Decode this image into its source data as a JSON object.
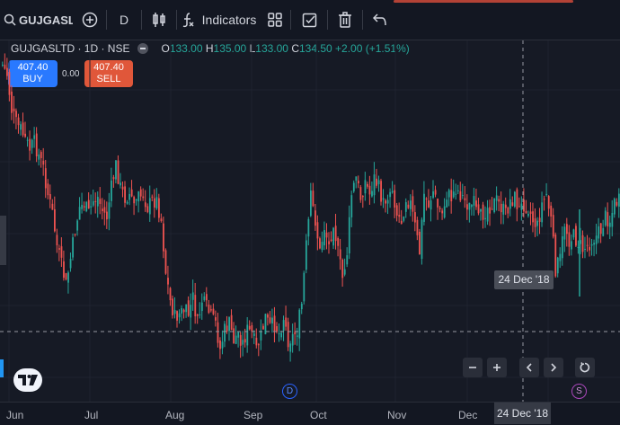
{
  "toolbar": {
    "symbol": "GUJGASLTD",
    "interval": "D",
    "indicators_label": "Indicators",
    "icons": [
      "search-icon",
      "add-symbol-icon",
      "candles-icon",
      "indicators-icon",
      "layouts-icon",
      "checkbox-icon",
      "trash-icon",
      "undo-icon"
    ]
  },
  "legend": {
    "symbol": "GUJGASLTD · 1D · NSE",
    "open_label": "O",
    "open": "133.00",
    "high_label": "H",
    "high": "135.00",
    "low_label": "L",
    "low": "133.00",
    "close_label": "C",
    "close": "134.50",
    "change": "+2.00 (+1.51%)"
  },
  "trade": {
    "buy_price": "407.40",
    "buy_label": "BUY",
    "sell_price": "407.40",
    "sell_label": "SELL",
    "spread": "0.00"
  },
  "crosshair": {
    "date": "24 Dec '18"
  },
  "time_axis": {
    "labels": [
      "Jun",
      "Jul",
      "Aug",
      "Sep",
      "Oct",
      "Nov",
      "Dec"
    ]
  },
  "markers": {
    "dividend": "D",
    "split": "S"
  },
  "colors": {
    "up": "#26a69a",
    "down": "#ef5350",
    "bg": "#161a25",
    "buy": "#2979ff",
    "sell": "#e0573a"
  },
  "chart_data": {
    "type": "candlestick",
    "series": [
      {
        "close_path": [
          [
            0,
            92
          ],
          [
            2,
            95
          ],
          [
            4,
            106
          ],
          [
            6,
            110
          ],
          [
            8,
            112
          ],
          [
            10,
            115
          ],
          [
            12,
            118
          ],
          [
            14,
            116
          ],
          [
            16,
            120
          ],
          [
            18,
            124
          ],
          [
            20,
            132
          ],
          [
            22,
            138
          ],
          [
            24,
            148
          ],
          [
            26,
            154
          ],
          [
            28,
            160
          ],
          [
            30,
            152
          ],
          [
            32,
            143
          ],
          [
            34,
            136
          ],
          [
            36,
            135
          ],
          [
            38,
            138
          ],
          [
            40,
            134
          ],
          [
            42,
            133
          ],
          [
            44,
            137
          ],
          [
            46,
            139
          ],
          [
            48,
            130
          ],
          [
            50,
            123
          ],
          [
            52,
            130
          ],
          [
            54,
            133
          ],
          [
            56,
            132
          ],
          [
            58,
            135
          ],
          [
            60,
            133
          ],
          [
            62,
            132
          ],
          [
            64,
            136
          ],
          [
            66,
            134
          ],
          [
            68,
            134
          ],
          [
            70,
            140
          ],
          [
            72,
            156
          ],
          [
            74,
            165
          ],
          [
            76,
            170
          ],
          [
            78,
            169
          ],
          [
            80,
            168
          ],
          [
            82,
            169
          ],
          [
            84,
            164
          ],
          [
            86,
            172
          ],
          [
            88,
            165
          ],
          [
            90,
            167
          ],
          [
            92,
            170
          ],
          [
            94,
            172
          ],
          [
            96,
            180
          ],
          [
            98,
            174
          ],
          [
            100,
            172
          ],
          [
            102,
            177
          ],
          [
            104,
            175
          ],
          [
            106,
            178
          ],
          [
            108,
            174
          ],
          [
            110,
            175
          ],
          [
            112,
            180
          ],
          [
            114,
            176
          ],
          [
            116,
            170
          ],
          [
            118,
            173
          ],
          [
            120,
            172
          ],
          [
            122,
            175
          ],
          [
            124,
            170
          ],
          [
            126,
            177
          ],
          [
            128,
            176
          ],
          [
            130,
            174
          ],
          [
            132,
            166
          ],
          [
            134,
            148
          ],
          [
            136,
            133
          ],
          [
            138,
            140
          ],
          [
            140,
            150
          ],
          [
            142,
            142
          ],
          [
            144,
            148
          ],
          [
            146,
            140
          ],
          [
            148,
            150
          ],
          [
            150,
            158
          ],
          [
            152,
            150
          ],
          [
            154,
            132
          ],
          [
            156,
            127
          ],
          [
            158,
            133
          ],
          [
            160,
            128
          ],
          [
            162,
            132
          ],
          [
            164,
            127
          ],
          [
            166,
            130
          ],
          [
            168,
            135
          ],
          [
            170,
            132
          ],
          [
            172,
            130
          ],
          [
            174,
            138
          ],
          [
            176,
            140
          ],
          [
            178,
            133
          ],
          [
            180,
            135
          ],
          [
            182,
            142
          ],
          [
            184,
            150
          ],
          [
            186,
            132
          ],
          [
            188,
            135
          ],
          [
            190,
            131
          ],
          [
            192,
            136
          ],
          [
            194,
            138
          ],
          [
            196,
            132
          ],
          [
            198,
            133
          ],
          [
            200,
            130
          ],
          [
            202,
            132
          ],
          [
            204,
            134
          ],
          [
            206,
            136
          ],
          [
            208,
            135
          ],
          [
            210,
            140
          ],
          [
            212,
            138
          ],
          [
            214,
            136
          ],
          [
            216,
            135
          ],
          [
            218,
            134
          ],
          [
            220,
            136
          ],
          [
            222,
            138
          ],
          [
            224,
            134
          ],
          [
            226,
            133
          ],
          [
            228,
            137
          ],
          [
            230,
            135
          ],
          [
            232,
            136
          ],
          [
            234,
            140
          ],
          [
            236,
            142
          ],
          [
            238,
            135
          ],
          [
            240,
            132
          ],
          [
            242,
            140
          ],
          [
            244,
            155
          ],
          [
            246,
            152
          ],
          [
            248,
            141
          ],
          [
            250,
            146
          ],
          [
            252,
            145
          ],
          [
            254,
            147
          ],
          [
            256,
            149
          ],
          [
            258,
            148
          ],
          [
            260,
            146
          ],
          [
            262,
            145
          ],
          [
            264,
            143
          ],
          [
            266,
            139
          ],
          [
            268,
            140
          ],
          [
            270,
            135
          ],
          [
            272,
            134
          ]
        ]
      }
    ],
    "xlabel": "",
    "ylabel": ""
  }
}
